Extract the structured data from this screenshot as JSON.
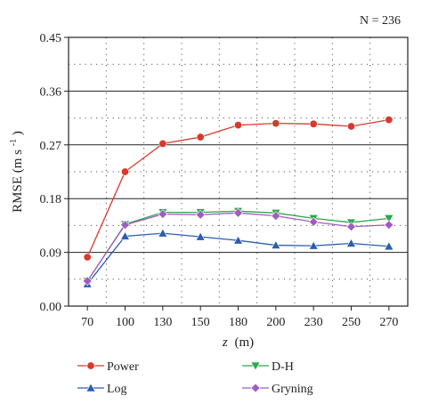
{
  "chart_data": {
    "type": "line",
    "annotation": "N = 236",
    "xlabel_var": "z",
    "xlabel_unit": "(m)",
    "ylabel_text": "RMSE (m s",
    "ylabel_sup": "-1",
    "ylabel_close": ")",
    "categories": [
      "70",
      "100",
      "130",
      "150",
      "180",
      "200",
      "230",
      "250",
      "270"
    ],
    "y_ticks": [
      "0.00",
      "0.09",
      "0.18",
      "0.27",
      "0.36",
      "0.45"
    ],
    "ylim": [
      0,
      0.45
    ],
    "grid": "dotted",
    "legend_position": "bottom",
    "series": [
      {
        "name": "Power",
        "color": "#d8392b",
        "marker": "circle",
        "values": [
          0.082,
          0.225,
          0.272,
          0.283,
          0.303,
          0.306,
          0.305,
          0.301,
          0.312
        ]
      },
      {
        "name": "Log",
        "color": "#2a5db0",
        "marker": "triangle-up",
        "values": [
          0.037,
          0.117,
          0.122,
          0.116,
          0.11,
          0.102,
          0.101,
          0.105,
          0.1
        ]
      },
      {
        "name": "D-H",
        "color": "#2aa84a",
        "marker": "triangle-down",
        "values": [
          0.042,
          0.137,
          0.157,
          0.157,
          0.159,
          0.156,
          0.147,
          0.14,
          0.147
        ]
      },
      {
        "name": "Gryning",
        "color": "#a25bc2",
        "marker": "diamond",
        "values": [
          0.042,
          0.136,
          0.154,
          0.153,
          0.156,
          0.151,
          0.141,
          0.133,
          0.136
        ]
      }
    ]
  }
}
